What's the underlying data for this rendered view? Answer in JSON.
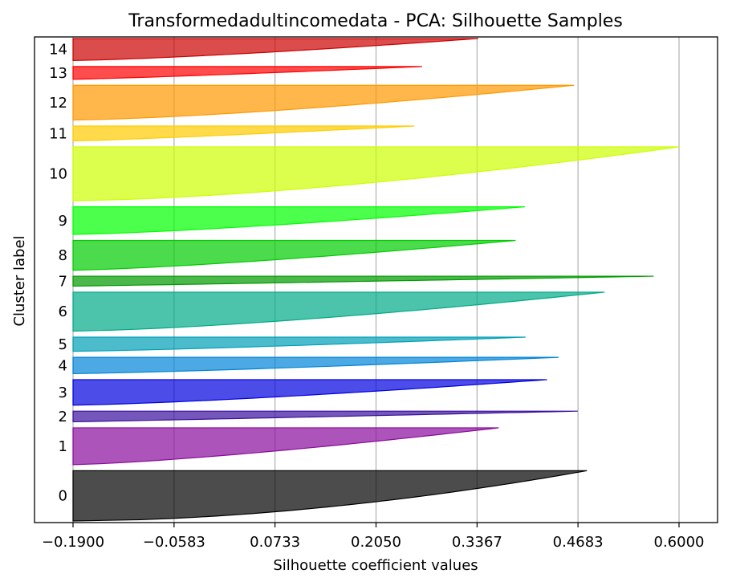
{
  "chart_data": {
    "type": "silhouette",
    "title": "Transformedadultincomedata - PCA: Silhouette Samples",
    "xlabel": "Silhouette coefficient values",
    "ylabel": "Cluster label",
    "xlim": [
      -0.19,
      0.6
    ],
    "xticks": [
      -0.19,
      -0.0583,
      0.0733,
      0.205,
      0.3367,
      0.4683,
      0.6
    ],
    "xtick_labels": [
      "−0.1900",
      "−0.0583",
      "0.0733",
      "0.2050",
      "0.3367",
      "0.4683",
      "0.6000"
    ],
    "grid": "vertical",
    "clusters": [
      {
        "label": "0",
        "color": "#000000",
        "size": 71,
        "max": 0.48,
        "min": -0.19,
        "shape": 0.55
      },
      {
        "label": "1",
        "color": "#8a0b9c",
        "size": 52,
        "max": 0.365,
        "min": -0.19,
        "shape": 0.75
      },
      {
        "label": "2",
        "color": "#3a0f9e",
        "size": 15,
        "max": 0.468,
        "min": -0.19,
        "shape": 0.95
      },
      {
        "label": "3",
        "color": "#0000e0",
        "size": 36,
        "max": 0.428,
        "min": -0.19,
        "shape": 0.75
      },
      {
        "label": "4",
        "color": "#0084d9",
        "size": 23,
        "max": 0.443,
        "min": -0.19,
        "shape": 0.8
      },
      {
        "label": "5",
        "color": "#00a0b8",
        "size": 20,
        "max": 0.4,
        "min": -0.19,
        "shape": 0.8
      },
      {
        "label": "6",
        "color": "#00aa88",
        "size": 55,
        "max": 0.503,
        "min": -0.19,
        "shape": 0.7
      },
      {
        "label": "7",
        "color": "#009a00",
        "size": 14,
        "max": 0.567,
        "min": -0.19,
        "shape": 0.95
      },
      {
        "label": "8",
        "color": "#00cc00",
        "size": 42,
        "max": 0.387,
        "min": -0.19,
        "shape": 0.75
      },
      {
        "label": "9",
        "color": "#00ff00",
        "size": 39,
        "max": 0.399,
        "min": -0.19,
        "shape": 0.75
      },
      {
        "label": "10",
        "color": "#ccff00",
        "size": 76,
        "max": 0.6,
        "min": -0.19,
        "shape": 0.65
      },
      {
        "label": "11",
        "color": "#ffcc00",
        "size": 21,
        "max": 0.255,
        "min": -0.19,
        "shape": 0.85
      },
      {
        "label": "12",
        "color": "#ff9900",
        "size": 49,
        "max": 0.463,
        "min": -0.19,
        "shape": 0.7
      },
      {
        "label": "13",
        "color": "#ff0000",
        "size": 18,
        "max": 0.265,
        "min": -0.19,
        "shape": 0.85
      },
      {
        "label": "14",
        "color": "#cc0000",
        "size": 31,
        "max": 0.338,
        "min": -0.19,
        "shape": 0.75
      }
    ]
  }
}
